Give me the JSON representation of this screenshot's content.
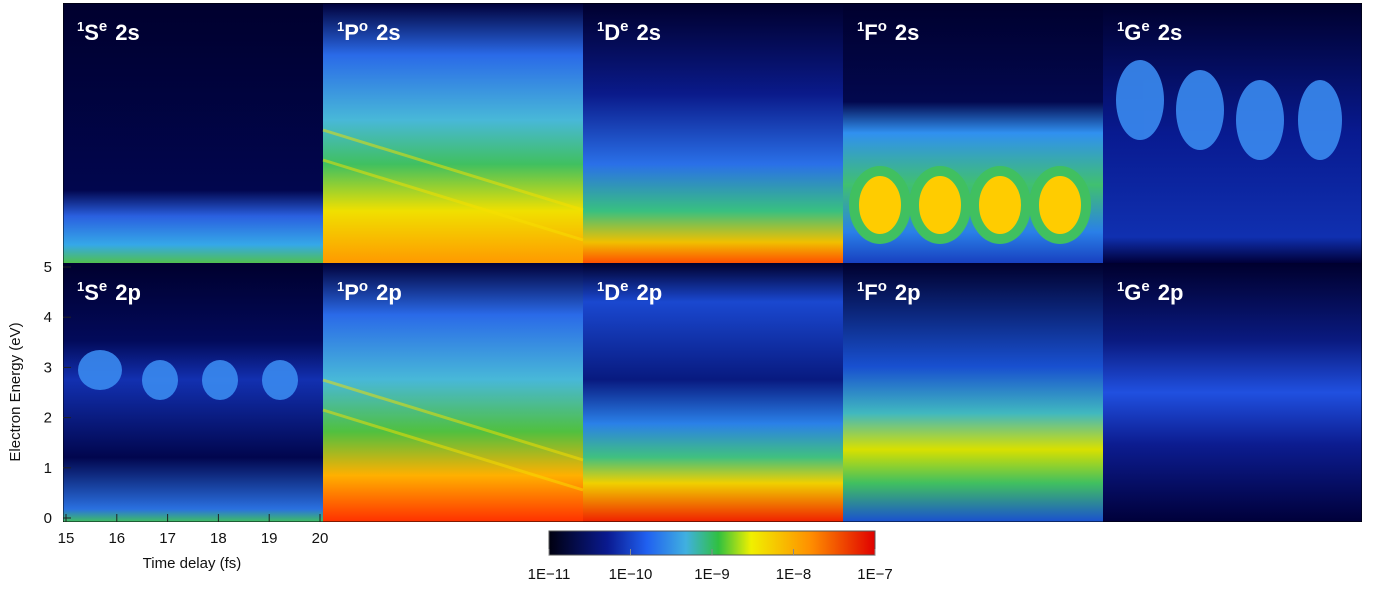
{
  "chart_data": {
    "type": "heatmap-grid",
    "panels": [
      {
        "mult": "1",
        "L": "S",
        "parity": "e",
        "orbital": "2s"
      },
      {
        "mult": "1",
        "L": "P",
        "parity": "o",
        "orbital": "2s"
      },
      {
        "mult": "1",
        "L": "D",
        "parity": "e",
        "orbital": "2s"
      },
      {
        "mult": "1",
        "L": "F",
        "parity": "o",
        "orbital": "2s"
      },
      {
        "mult": "1",
        "L": "G",
        "parity": "e",
        "orbital": "2s"
      },
      {
        "mult": "1",
        "L": "S",
        "parity": "e",
        "orbital": "2p"
      },
      {
        "mult": "1",
        "L": "P",
        "parity": "o",
        "orbital": "2p"
      },
      {
        "mult": "1",
        "L": "D",
        "parity": "e",
        "orbital": "2p"
      },
      {
        "mult": "1",
        "L": "F",
        "parity": "o",
        "orbital": "2p"
      },
      {
        "mult": "1",
        "L": "G",
        "parity": "e",
        "orbital": "2p"
      }
    ],
    "x_label": "Time delay (fs)",
    "y_label": "Electron Energy (eV)",
    "xlim": [
      15,
      20
    ],
    "xticks": [
      15,
      16,
      17,
      18,
      19,
      20
    ],
    "ylim": [
      0,
      5
    ],
    "yticks": [
      0,
      1,
      2,
      3,
      4,
      5
    ],
    "colorbar": {
      "scale": "log",
      "lim": [
        1e-11,
        1e-07
      ],
      "ticks": [
        {
          "value": 1e-11,
          "label": "1E−11"
        },
        {
          "value": 1e-10,
          "label": "1E−10"
        },
        {
          "value": 1e-09,
          "label": "1E−9"
        },
        {
          "value": 1e-08,
          "label": "1E−8"
        },
        {
          "value": 1e-07,
          "label": "1E−7"
        }
      ]
    }
  }
}
